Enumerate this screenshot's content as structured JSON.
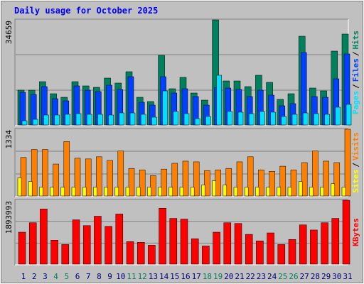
{
  "chart_data": [
    {
      "type": "bar",
      "title": "Daily usage for October 2025",
      "legend_separator": "/",
      "categories": [
        "1",
        "2",
        "3",
        "4",
        "5",
        "6",
        "7",
        "8",
        "9",
        "10",
        "11",
        "12",
        "13",
        "14",
        "15",
        "16",
        "17",
        "18",
        "19",
        "20",
        "21",
        "22",
        "23",
        "24",
        "25",
        "26",
        "27",
        "28",
        "29",
        "30",
        "31"
      ],
      "category_colors": [
        "#000080",
        "#000080",
        "#000080",
        "#00805c",
        "#00805c",
        "#000080",
        "#000080",
        "#000080",
        "#000080",
        "#000080",
        "#00805c",
        "#00805c",
        "#000080",
        "#000080",
        "#000080",
        "#000080",
        "#000080",
        "#00805c",
        "#00805c",
        "#000080",
        "#000080",
        "#000080",
        "#000080",
        "#000080",
        "#00805c",
        "#00805c",
        "#000080",
        "#000080",
        "#000080",
        "#000080",
        "#000080"
      ],
      "ylim": [
        0,
        34659
      ],
      "yticks": [
        34659
      ],
      "series": [
        {
          "name": "Pages",
          "color": "#00e0ff",
          "values": [
            1405,
            1874,
            3279,
            3279,
            3513,
            3747,
            3513,
            3513,
            3279,
            3981,
            3981,
            3513,
            2576,
            11242,
            4450,
            3747,
            2108,
            2810,
            16394,
            4450,
            4216,
            3747,
            4450,
            4216,
            2810,
            3513,
            3981,
            3747,
            3513,
            5855,
            6792
          ]
        },
        {
          "name": "Files",
          "color": "#0040ff",
          "values": [
            10773,
            10071,
            12647,
            8665,
            7963,
            12881,
            11476,
            11007,
            13115,
            11710,
            15926,
            7494,
            6558,
            15926,
            10539,
            11944,
            9368,
            6558,
            12413,
            12178,
            11710,
            9368,
            11476,
            9836,
            6323,
            7026,
            23888,
            9368,
            9134,
            15223,
            23420
          ]
        },
        {
          "name": "Hits",
          "color": "#00805c",
          "values": [
            11476,
            11476,
            14286,
            10305,
            9134,
            14286,
            12881,
            12413,
            15457,
            13818,
            17565,
            9134,
            7729,
            22952,
            11944,
            15691,
            10539,
            8197,
            34659,
            14520,
            14520,
            12647,
            16394,
            14052,
            8431,
            10305,
            29275,
            12178,
            11242,
            24357,
            29977
          ]
        }
      ]
    },
    {
      "type": "bar",
      "legend_separator": "/",
      "ylim": [
        0,
        1334
      ],
      "yticks": [
        1334
      ],
      "series": [
        {
          "name": "Sites",
          "color": "#ffff00",
          "values": [
            363,
            290,
            174,
            174,
            174,
            174,
            174,
            174,
            174,
            174,
            174,
            174,
            174,
            174,
            174,
            174,
            174,
            218,
            305,
            218,
            174,
            174,
            174,
            174,
            174,
            174,
            290,
            174,
            174,
            247,
            174
          ]
        },
        {
          "name": "Visits",
          "color": "#ff8000",
          "values": [
            769,
            928,
            928,
            638,
            1088,
            754,
            740,
            783,
            711,
            899,
            551,
            522,
            406,
            537,
            653,
            696,
            682,
            508,
            522,
            551,
            682,
            783,
            522,
            493,
            595,
            522,
            667,
            899,
            696,
            667,
            1334
          ]
        }
      ]
    },
    {
      "type": "bar",
      "ylim": [
        0,
        1893993
      ],
      "yticks": [
        1893993
      ],
      "series": [
        {
          "name": "KBytes",
          "color": "#ff0000",
          "values": [
            947000,
            1226800,
            1635700,
            710200,
            581100,
            1312900,
            1140700,
            1420500,
            1119200,
            1485100,
            667200,
            645700,
            559600,
            1657300,
            1355900,
            1334400,
            753300,
            538100,
            947000,
            1226800,
            1205300,
            882400,
            688700,
            925500,
            581100,
            731800,
            1162200,
            1011600,
            1226800,
            1355900,
            1893993
          ]
        }
      ]
    }
  ]
}
